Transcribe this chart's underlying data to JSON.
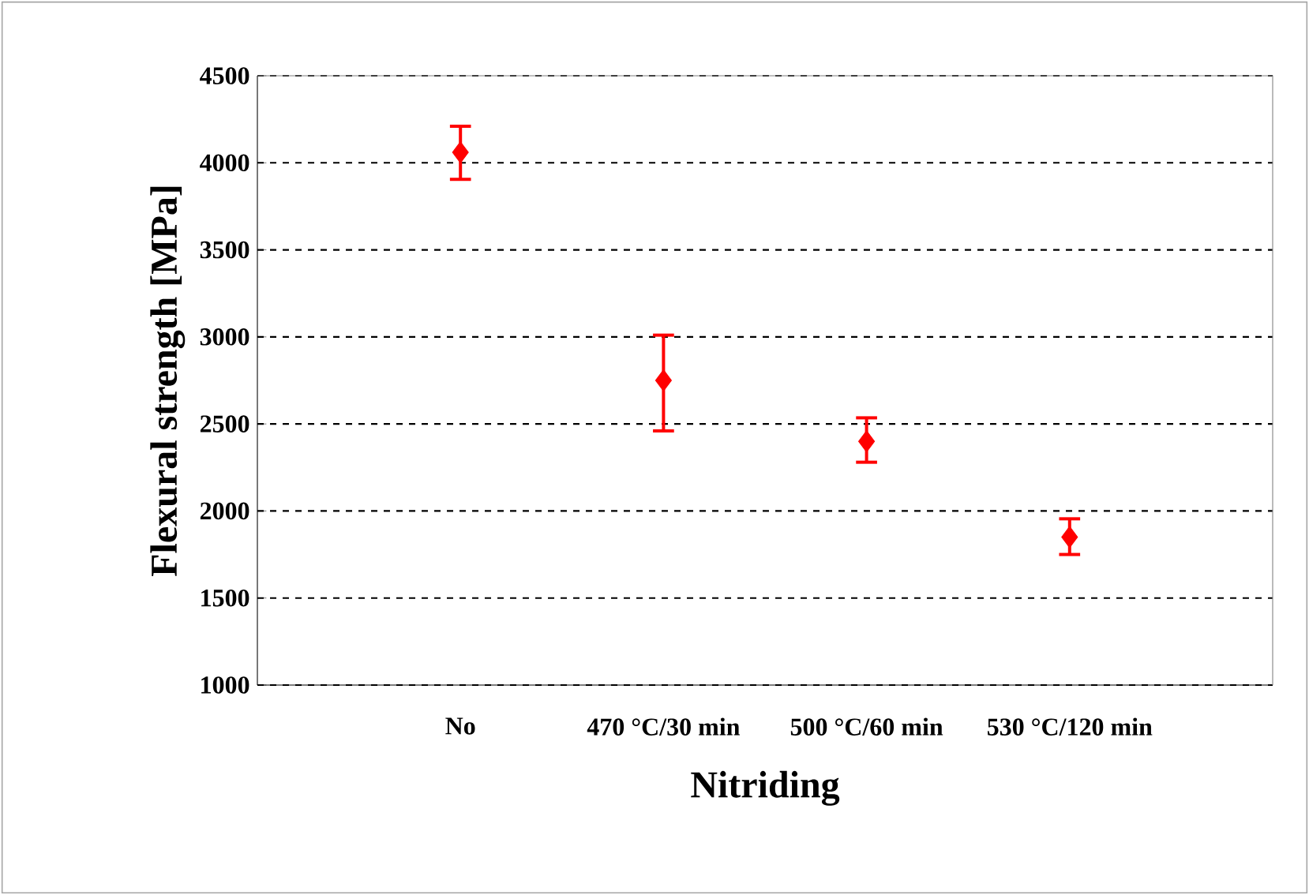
{
  "chart_data": {
    "type": "scatter",
    "xlabel": "Nitriding",
    "ylabel": "Flexural strength [MPa]",
    "categories": [
      "No",
      "470 °C/30 min",
      "500 °C/60 min",
      "530 °C/120 min"
    ],
    "values": [
      4060,
      2750,
      2400,
      1850
    ],
    "errors": [
      [
        3905,
        4210
      ],
      [
        2460,
        3010
      ],
      [
        2280,
        2535
      ],
      [
        1750,
        1955
      ]
    ],
    "color": "#ff0000",
    "marker": "diamond",
    "ylim": [
      1000,
      4500
    ],
    "yticks": [
      1000,
      1500,
      2000,
      2500,
      3000,
      3500,
      4000,
      4500
    ],
    "grid": "y"
  }
}
